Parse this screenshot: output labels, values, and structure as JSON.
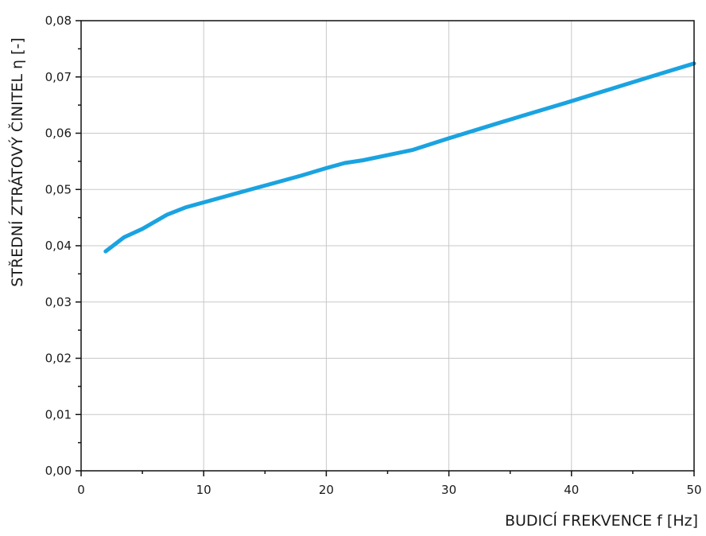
{
  "chart_data": {
    "type": "line",
    "xlabel": "BUDICÍ FREKVENCE f [Hz]",
    "ylabel": "STŘEDNÍ ZTRÁTOVÝ ČINITEL η [-]",
    "xlim": [
      0,
      50
    ],
    "ylim": [
      0.0,
      0.08
    ],
    "x_ticks": [
      0,
      10,
      20,
      30,
      40,
      50
    ],
    "x_tick_labels": [
      "0",
      "10",
      "20",
      "30",
      "40",
      "50"
    ],
    "y_ticks": [
      0.0,
      0.01,
      0.02,
      0.03,
      0.04,
      0.05,
      0.06,
      0.07,
      0.08
    ],
    "y_tick_labels": [
      "0,00",
      "0,01",
      "0,02",
      "0,03",
      "0,04",
      "0,05",
      "0,06",
      "0,07",
      "0,08"
    ],
    "grid": true,
    "series": [
      {
        "color": "#1aa3e0",
        "x": [
          2,
          3.5,
          5,
          7,
          8.5,
          10,
          12,
          14,
          16,
          18,
          20,
          21.5,
          23,
          25,
          27,
          28,
          30,
          33,
          36,
          40,
          44,
          47,
          50
        ],
        "y": [
          0.039,
          0.0415,
          0.043,
          0.0455,
          0.0468,
          0.0477,
          0.0489,
          0.0501,
          0.0513,
          0.0525,
          0.0538,
          0.0547,
          0.0552,
          0.0561,
          0.057,
          0.0577,
          0.0591,
          0.0611,
          0.0631,
          0.0657,
          0.0684,
          0.0704,
          0.0724
        ]
      }
    ]
  }
}
